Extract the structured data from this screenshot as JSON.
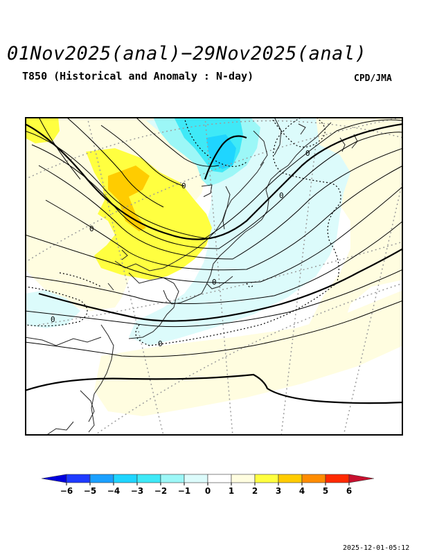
{
  "header": {
    "title": "01Nov2025(anal)−29Nov2025(anal)",
    "subtitle": "T850 (Historical and Anomaly : N-day)",
    "credit": "CPD/JMA"
  },
  "map": {
    "contour_labels": [
      "0",
      "0",
      "0",
      "0",
      "0",
      "0",
      "0"
    ]
  },
  "legend": {
    "ticks": [
      "−6",
      "−5",
      "−4",
      "−3",
      "−2",
      "−1",
      "0",
      "1",
      "2",
      "3",
      "4",
      "5",
      "6"
    ],
    "colors": [
      "#1f3bff",
      "#1ba0ff",
      "#1fd5ff",
      "#3fe9f7",
      "#9cf7f7",
      "#dcfbfb",
      "#ffffff",
      "#fffde0",
      "#ffff40",
      "#ffcc00",
      "#ff8c00",
      "#ff2a00"
    ],
    "low_end_color": "#0000dd",
    "high_end_color": "#c8102e"
  },
  "footer": {
    "timestamp": "2025-12-01-05:12"
  }
}
